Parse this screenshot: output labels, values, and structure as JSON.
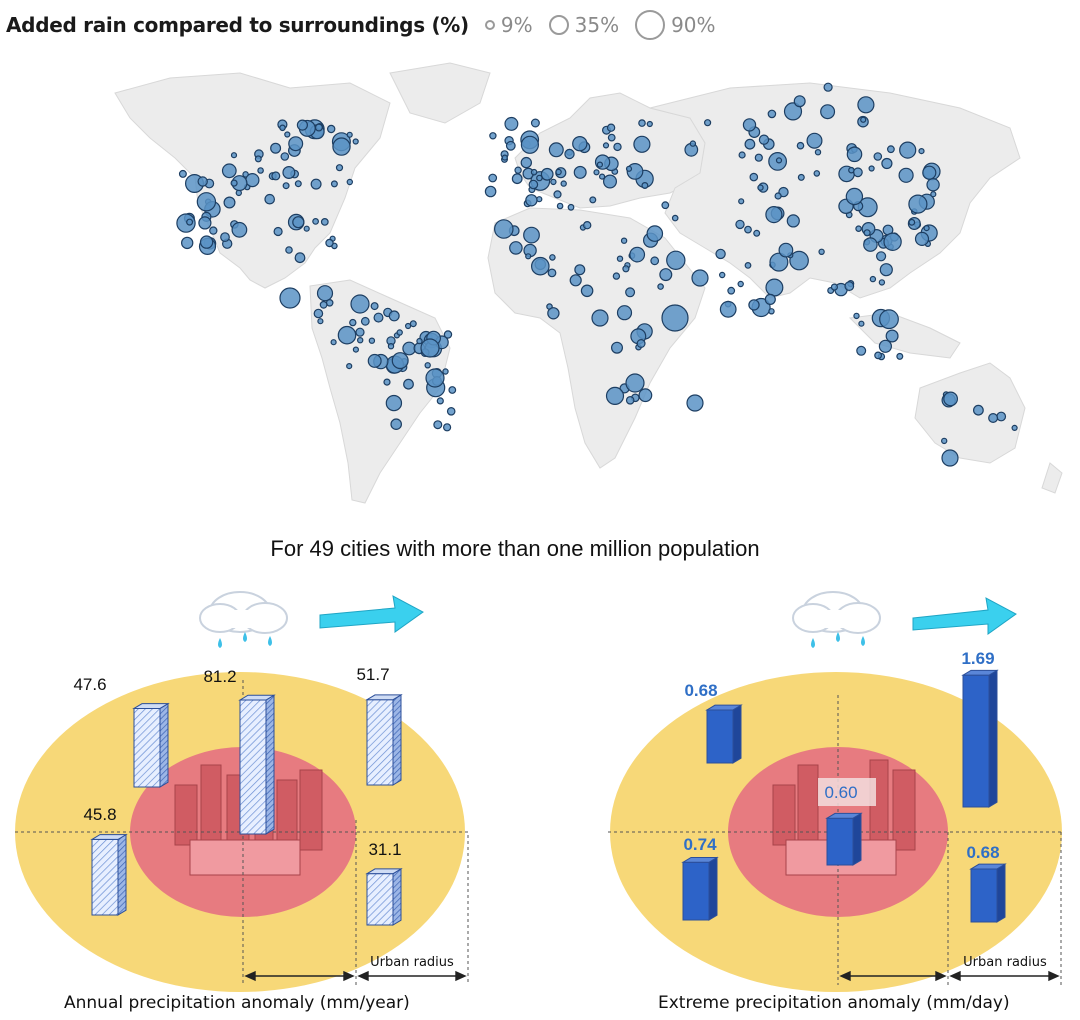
{
  "legend": {
    "title": "Added rain compared to surroundings (%)",
    "items": [
      {
        "label": "9%",
        "size": 9
      },
      {
        "label": "35%",
        "size": 35
      },
      {
        "label": "90%",
        "size": 90
      }
    ]
  },
  "subtitle": "For 49 cities with more than one million population",
  "colors": {
    "land": "#ececec",
    "city_fill": "#5b93c6",
    "city_stroke": "#1d3e62",
    "urban": "#e77b80",
    "rural": "#f7d878",
    "bar_hatched": "#c9dcf5",
    "bar_solid": "#2d63c8",
    "arrow": "#3ad0ee"
  },
  "annual_panel": {
    "caption": "Annual precipitation anomaly (mm/year)",
    "urban_radius_label": "Urban radius",
    "bars": [
      {
        "position": "upwind-top",
        "value": 47.6,
        "label": "47.6"
      },
      {
        "position": "center",
        "value": 81.2,
        "label": "81.2"
      },
      {
        "position": "downwind-top",
        "value": 51.7,
        "label": "51.7"
      },
      {
        "position": "upwind-bottom",
        "value": 45.8,
        "label": "45.8"
      },
      {
        "position": "downwind-bottom",
        "value": 31.1,
        "label": "31.1"
      }
    ]
  },
  "extreme_panel": {
    "caption": "Extreme precipitation anomaly (mm/day)",
    "urban_radius_label": "Urban radius",
    "bars": [
      {
        "position": "upwind-top",
        "value": 0.68,
        "label": "0.68"
      },
      {
        "position": "downwind-top",
        "value": 1.69,
        "label": "1.69"
      },
      {
        "position": "center",
        "value": 0.6,
        "label": "0.60"
      },
      {
        "position": "upwind-bottom",
        "value": 0.74,
        "label": "0.74"
      },
      {
        "position": "downwind-bottom",
        "value": 0.68,
        "label": "0.68"
      }
    ]
  }
}
